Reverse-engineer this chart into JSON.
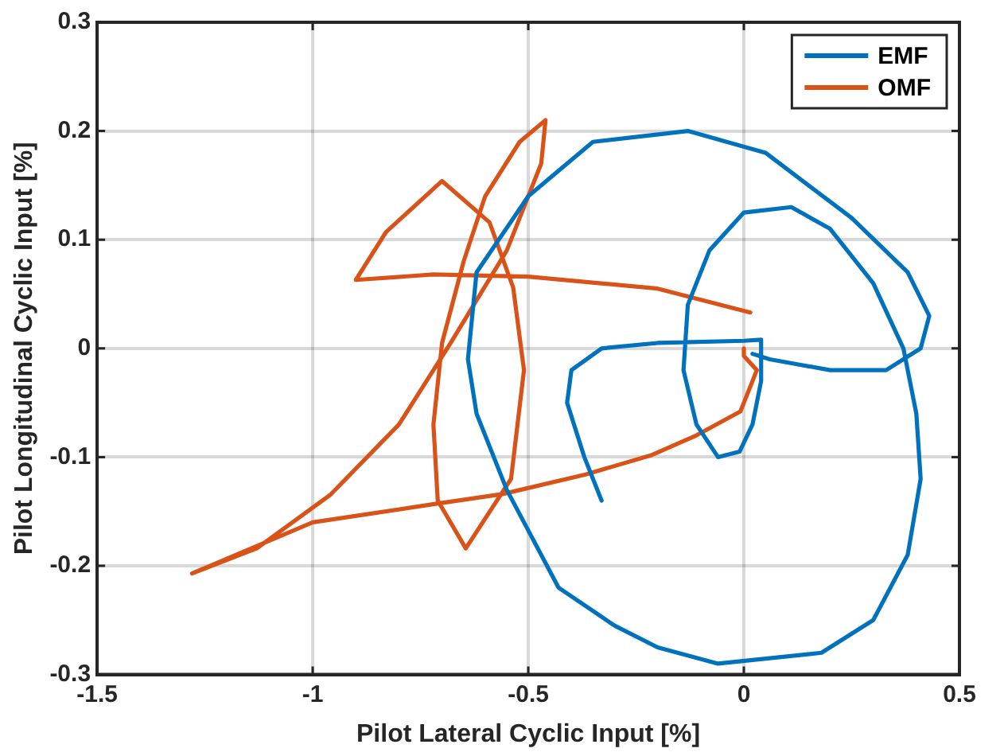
{
  "chart_data": {
    "type": "line",
    "xlabel": "Pilot Lateral Cyclic Input [%]",
    "ylabel": "Pilot Longitudinal Cyclic Input [%]",
    "xlim": [
      -1.5,
      0.5
    ],
    "xticks": [
      -1.5,
      -1,
      -0.5,
      0,
      0.5
    ],
    "ylim": [
      -0.3,
      0.3
    ],
    "yticks": [
      -0.3,
      -0.2,
      -0.1,
      0,
      0.1,
      0.2,
      0.3
    ],
    "grid": true,
    "legend": "top right",
    "marker": "none",
    "line_style": "solid",
    "series": [
      {
        "name": "EMF",
        "color": "#0072bd",
        "x": [
          -0.33,
          -0.37,
          -0.41,
          -0.4,
          -0.33,
          -0.2,
          0.0,
          0.04,
          0.04,
          0.02,
          -0.01,
          -0.06,
          -0.11,
          -0.14,
          -0.13,
          -0.08,
          0.0,
          0.11,
          0.2,
          0.3,
          0.37,
          0.4,
          0.41,
          0.38,
          0.3,
          0.18,
          -0.06,
          -0.2,
          -0.3,
          -0.43,
          -0.55,
          -0.62,
          -0.64,
          -0.62,
          -0.5,
          -0.35,
          -0.13,
          0.05,
          0.25,
          0.38,
          0.43,
          0.41,
          0.33,
          0.2,
          0.06,
          0.02
        ],
        "values": [
          -0.14,
          -0.1,
          -0.05,
          -0.02,
          0.0,
          0.005,
          0.007,
          0.008,
          -0.03,
          -0.07,
          -0.095,
          -0.1,
          -0.07,
          -0.02,
          0.04,
          0.09,
          0.125,
          0.13,
          0.11,
          0.06,
          0.0,
          -0.06,
          -0.12,
          -0.19,
          -0.25,
          -0.28,
          -0.29,
          -0.275,
          -0.255,
          -0.22,
          -0.13,
          -0.06,
          -0.01,
          0.07,
          0.14,
          0.19,
          0.2,
          0.18,
          0.12,
          0.07,
          0.03,
          0.0,
          -0.02,
          -0.02,
          -0.01,
          -0.005
        ]
      },
      {
        "name": "OMF",
        "color": "#d95319",
        "x": [
          0.015,
          -0.2,
          -0.5,
          -0.72,
          -0.9,
          -0.83,
          -0.7,
          -0.59,
          -0.535,
          -0.51,
          -0.54,
          -0.645,
          -0.71,
          -0.72,
          -0.7,
          -0.65,
          -0.6,
          -0.52,
          -0.46,
          -0.47,
          -0.55,
          -0.68,
          -0.8,
          -0.96,
          -1.13,
          -1.28,
          -1.0,
          -0.715,
          -0.56,
          -0.367,
          -0.213,
          -0.11,
          -0.008,
          0.03,
          0.0,
          0.0
        ],
        "values": [
          0.033,
          0.055,
          0.066,
          0.068,
          0.063,
          0.107,
          0.154,
          0.116,
          0.056,
          -0.02,
          -0.12,
          -0.184,
          -0.14,
          -0.07,
          0.005,
          0.08,
          0.14,
          0.19,
          0.21,
          0.17,
          0.09,
          0.005,
          -0.07,
          -0.135,
          -0.184,
          -0.207,
          -0.16,
          -0.143,
          -0.134,
          -0.116,
          -0.098,
          -0.08,
          -0.058,
          -0.02,
          -0.007,
          0.0
        ]
      }
    ]
  }
}
